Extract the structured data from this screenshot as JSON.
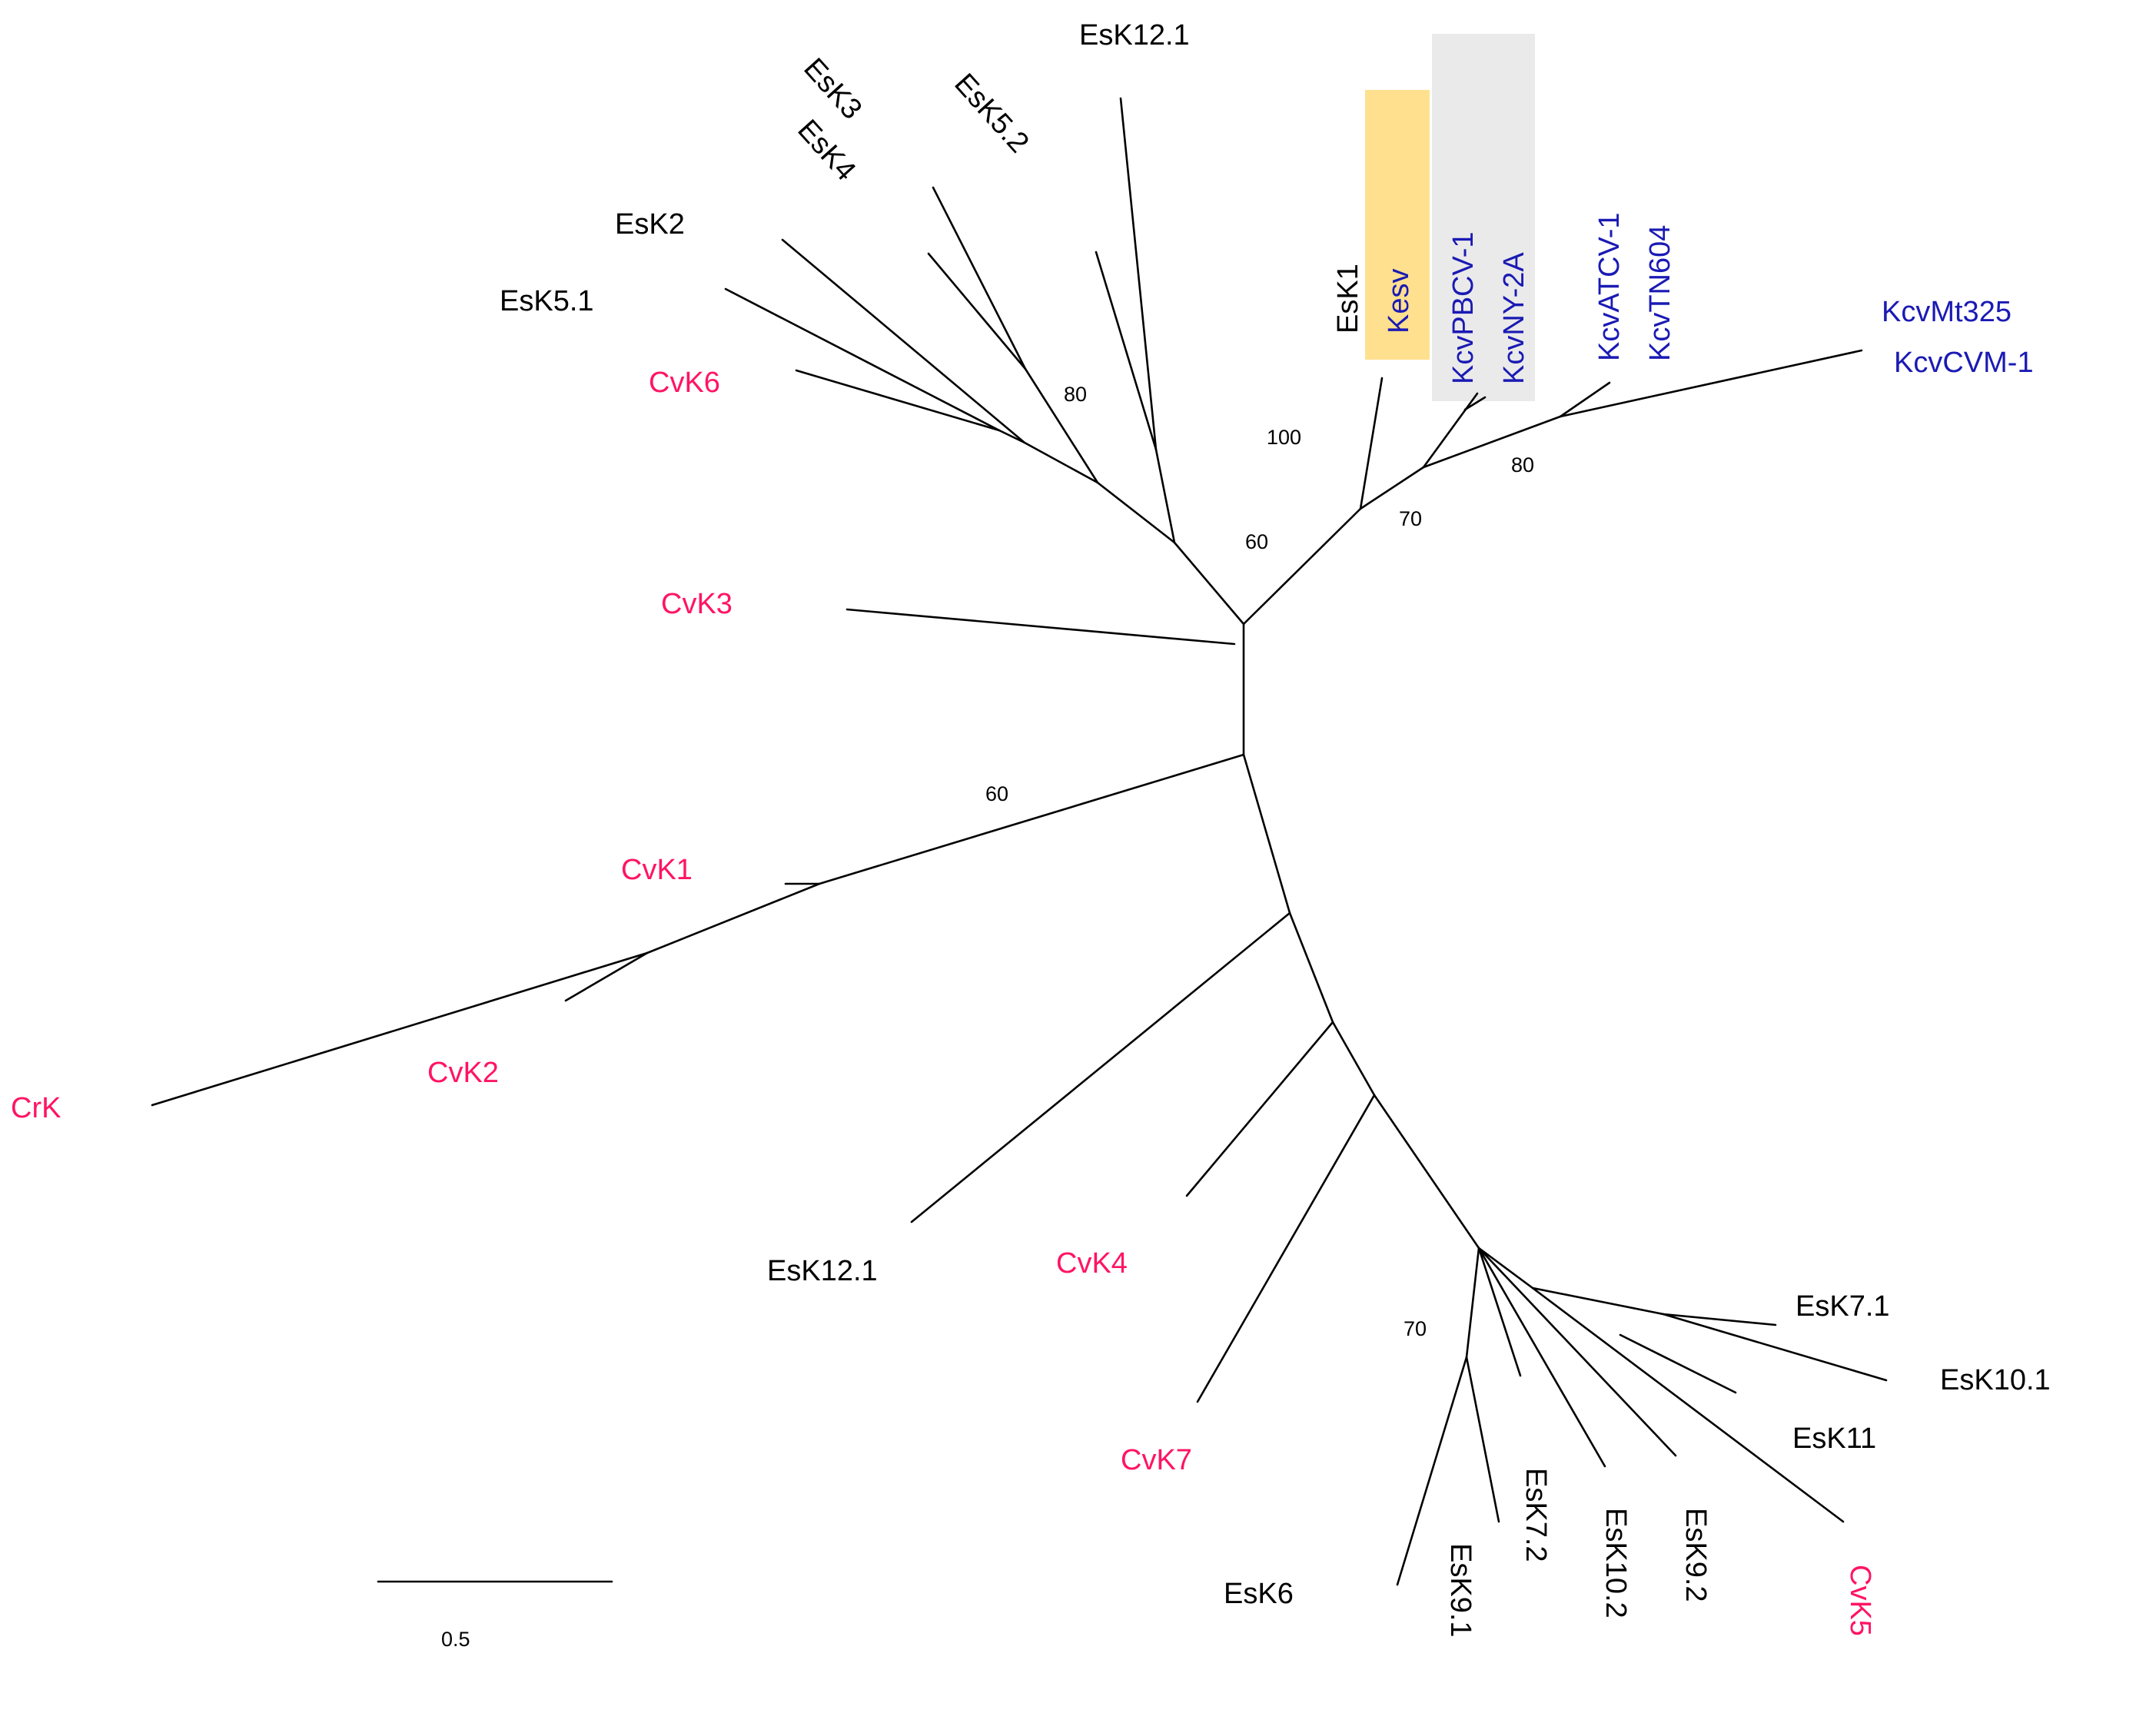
{
  "colors": {
    "environmental": "#000000",
    "chlorovirus": "#ff1463",
    "kcv": "#1a1ab4",
    "highlight_kesv": "#ffe08f",
    "highlight_kcv": "#eaeaea",
    "branch": "#000000"
  },
  "taxa": {
    "EsK12_1_top": "EsK12.1",
    "EsK3": "EsK3",
    "EsK4": "EsK4",
    "EsK5_2": "EsK5.2",
    "EsK2": "EsK2",
    "EsK5_1": "EsK5.1",
    "CvK6": "CvK6",
    "EsK1": "EsK1",
    "Kesv": "Kesv",
    "KcvPBCV_1": "KcvPBCV-1",
    "KcvNY_2A": "KcvNY-2A",
    "KcvATCV_1": "KcvATCV-1",
    "KcvTN604": "KcvTN604",
    "KcvMt325": "KcvMt325",
    "KcvCVM_1": "KcvCVM-1",
    "CvK3": "CvK3",
    "CvK1": "CvK1",
    "CvK2": "CvK2",
    "CrK": "CrK",
    "EsK12_1_bottom": "EsK12.1",
    "CvK4": "CvK4",
    "CvK7": "CvK7",
    "EsK6": "EsK6",
    "EsK9_1": "EsK9.1",
    "EsK7_2": "EsK7.2",
    "EsK10_2": "EsK10.2",
    "EsK9_2": "EsK9.2",
    "CvK5": "CvK5",
    "EsK11": "EsK11",
    "EsK10_1": "EsK10.1",
    "EsK7_1": "EsK7.1"
  },
  "bootstrap": {
    "b80_esk": "80",
    "b100": "100",
    "b60_top": "60",
    "b70_kcv": "70",
    "b80_kcv": "80",
    "b60_cvk1": "60",
    "b70_bottom": "70"
  },
  "scale_bar": {
    "label": "0.5",
    "length": 0.5
  }
}
